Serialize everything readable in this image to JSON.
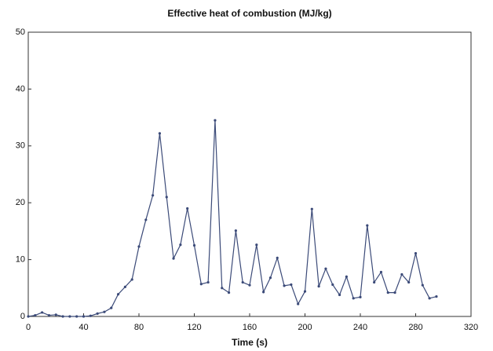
{
  "chart_data": {
    "type": "line",
    "title": "Effective heat of combustion (MJ/kg)",
    "x_label": "Time (s)",
    "x": [
      0,
      5,
      10,
      15,
      20,
      25,
      30,
      35,
      40,
      45,
      50,
      55,
      60,
      65,
      70,
      75,
      80,
      85,
      90,
      95,
      100,
      105,
      110,
      115,
      120,
      125,
      130,
      135,
      140,
      145,
      150,
      155,
      160,
      165,
      170,
      175,
      180,
      185,
      190,
      195,
      200,
      205,
      210,
      215,
      220,
      225,
      230,
      235,
      240,
      245,
      250,
      255,
      260,
      265,
      270,
      275,
      280,
      285,
      290,
      295
    ],
    "series": [
      {
        "name": "Effective heat of combustion",
        "color": "#3b4a78",
        "values": [
          0,
          0.2,
          0.7,
          0.2,
          0.3,
          0,
          0,
          0,
          0,
          0.1,
          0.5,
          0.8,
          1.5,
          3.9,
          5.2,
          6.5,
          12.3,
          17,
          21.3,
          32.2,
          21,
          10.2,
          12.6,
          19,
          12.5,
          5.7,
          6,
          34.5,
          5,
          4.2,
          15.1,
          6,
          5.5,
          12.6,
          4.3,
          6.8,
          10.3,
          5.4,
          5.6,
          2.2,
          4.4,
          18.9,
          5.3,
          8.4,
          5.6,
          3.8,
          7,
          3.2,
          3.4,
          16,
          6,
          7.8,
          4.2,
          4.2,
          7.4,
          6,
          11.1,
          5.5,
          3.2,
          3.5
        ]
      }
    ],
    "xlim": [
      0,
      320
    ],
    "xticks": [
      0,
      40,
      80,
      120,
      160,
      200,
      240,
      280,
      320
    ],
    "ylim": [
      0,
      50
    ],
    "yticks": [
      0,
      10,
      20,
      30,
      40,
      50
    ]
  }
}
